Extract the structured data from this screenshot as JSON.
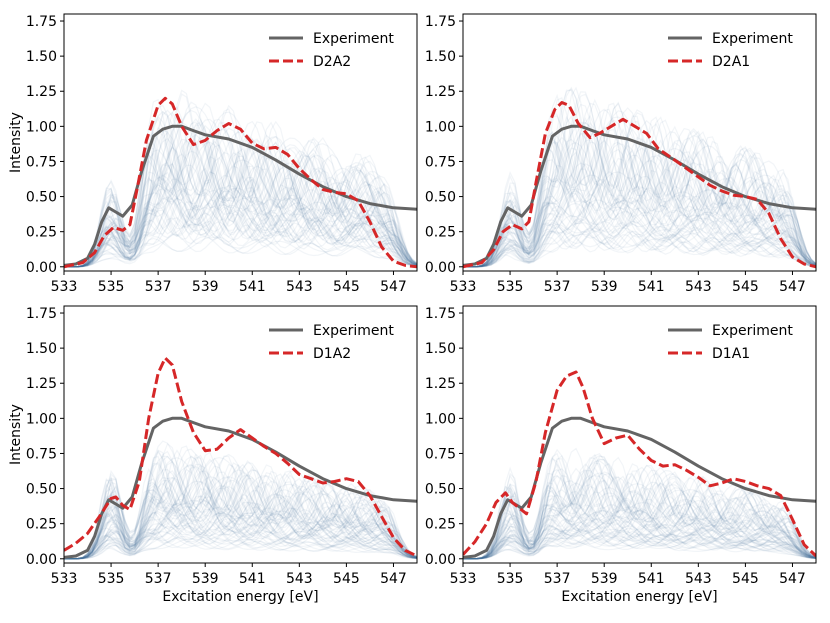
{
  "colors": {
    "experiment": "#646464",
    "calc": "#d62728",
    "band": "#4a6f9c",
    "axis": "#000000"
  },
  "shared": {
    "xlabel": "Excitation energy [eV]",
    "ylabel": "Intensity",
    "xticks": [
      "533",
      "535",
      "537",
      "539",
      "541",
      "543",
      "545",
      "547"
    ],
    "yticks": [
      "0.00",
      "0.25",
      "0.50",
      "0.75",
      "1.00",
      "1.25",
      "1.50",
      "1.75"
    ]
  },
  "chart_data": [
    {
      "type": "line",
      "legend": [
        "Experiment",
        "D2A2"
      ],
      "xlim": [
        533,
        548
      ],
      "ylim": [
        -0.03,
        1.8
      ],
      "xlabel": "",
      "ylabel": "Intensity",
      "series": [
        {
          "name": "Experiment",
          "style": "solid",
          "x": [
            533,
            533.5,
            534,
            534.3,
            534.6,
            534.9,
            535.2,
            535.5,
            535.9,
            536.3,
            536.8,
            537.2,
            537.6,
            538,
            538.5,
            539,
            540,
            541,
            542,
            543,
            544,
            545,
            546,
            547,
            548
          ],
          "y": [
            0.01,
            0.02,
            0.06,
            0.16,
            0.32,
            0.42,
            0.39,
            0.36,
            0.44,
            0.68,
            0.93,
            0.98,
            1.0,
            1.0,
            0.97,
            0.94,
            0.91,
            0.85,
            0.76,
            0.66,
            0.57,
            0.5,
            0.45,
            0.42,
            0.41
          ]
        },
        {
          "name": "D2A2",
          "style": "dashed",
          "x": [
            533,
            533.8,
            534.3,
            534.7,
            535.1,
            535.5,
            535.8,
            536.1,
            536.5,
            537,
            537.3,
            537.6,
            538,
            538.5,
            539,
            539.5,
            540,
            540.5,
            541,
            541.5,
            542,
            542.5,
            543,
            543.5,
            544,
            544.5,
            545,
            545.5,
            546,
            546.5,
            547,
            547.5,
            548
          ],
          "y": [
            0.0,
            0.03,
            0.1,
            0.22,
            0.28,
            0.26,
            0.3,
            0.55,
            0.9,
            1.15,
            1.2,
            1.16,
            1.0,
            0.87,
            0.9,
            0.97,
            1.02,
            0.98,
            0.88,
            0.84,
            0.85,
            0.8,
            0.7,
            0.62,
            0.55,
            0.53,
            0.52,
            0.47,
            0.32,
            0.14,
            0.04,
            0.01,
            0.0
          ]
        }
      ]
    },
    {
      "type": "line",
      "legend": [
        "Experiment",
        "D2A1"
      ],
      "xlim": [
        533,
        548
      ],
      "ylim": [
        -0.03,
        1.8
      ],
      "xlabel": "",
      "ylabel": "",
      "series": [
        {
          "name": "Experiment",
          "style": "solid",
          "x": [
            533,
            533.5,
            534,
            534.3,
            534.6,
            534.9,
            535.2,
            535.5,
            535.9,
            536.3,
            536.8,
            537.2,
            537.6,
            538,
            538.5,
            539,
            540,
            541,
            542,
            543,
            544,
            545,
            546,
            547,
            548
          ],
          "y": [
            0.01,
            0.02,
            0.06,
            0.16,
            0.32,
            0.42,
            0.39,
            0.36,
            0.44,
            0.68,
            0.93,
            0.98,
            1.0,
            1.0,
            0.97,
            0.94,
            0.91,
            0.85,
            0.76,
            0.66,
            0.57,
            0.5,
            0.45,
            0.42,
            0.41
          ]
        },
        {
          "name": "D2A1",
          "style": "dashed",
          "x": [
            533,
            533.8,
            534.3,
            534.7,
            535.1,
            535.5,
            535.8,
            536.1,
            536.5,
            536.9,
            537.2,
            537.5,
            537.9,
            538.4,
            538.8,
            539.3,
            539.8,
            540.3,
            540.8,
            541.3,
            542,
            542.5,
            543,
            543.5,
            544,
            544.5,
            545,
            545.5,
            546,
            546.5,
            547,
            547.5,
            548
          ],
          "y": [
            0.0,
            0.03,
            0.12,
            0.25,
            0.3,
            0.27,
            0.32,
            0.6,
            0.95,
            1.12,
            1.17,
            1.15,
            1.02,
            0.92,
            0.95,
            1.0,
            1.05,
            1.0,
            0.95,
            0.84,
            0.76,
            0.7,
            0.64,
            0.58,
            0.54,
            0.51,
            0.5,
            0.48,
            0.38,
            0.2,
            0.07,
            0.02,
            0.0
          ]
        }
      ]
    },
    {
      "type": "line",
      "legend": [
        "Experiment",
        "D1A2"
      ],
      "xlim": [
        533,
        548
      ],
      "ylim": [
        -0.03,
        1.8
      ],
      "xlabel": "Excitation energy [eV]",
      "ylabel": "Intensity",
      "series": [
        {
          "name": "Experiment",
          "style": "solid",
          "x": [
            533,
            533.5,
            534,
            534.3,
            534.6,
            534.9,
            535.2,
            535.5,
            535.9,
            536.3,
            536.8,
            537.2,
            537.6,
            538,
            538.5,
            539,
            540,
            541,
            542,
            543,
            544,
            545,
            546,
            547,
            548
          ],
          "y": [
            0.01,
            0.02,
            0.06,
            0.16,
            0.32,
            0.42,
            0.39,
            0.36,
            0.44,
            0.68,
            0.93,
            0.98,
            1.0,
            1.0,
            0.97,
            0.94,
            0.91,
            0.85,
            0.76,
            0.66,
            0.57,
            0.5,
            0.45,
            0.42,
            0.41
          ]
        },
        {
          "name": "D1A2",
          "style": "dashed",
          "x": [
            533,
            533.5,
            534,
            534.5,
            535,
            535.2,
            535.5,
            535.8,
            536.2,
            536.6,
            537,
            537.3,
            537.6,
            538,
            538.5,
            539,
            539.5,
            540,
            540.5,
            541,
            541.5,
            542,
            542.5,
            543,
            543.5,
            544,
            544.5,
            545,
            545.5,
            546,
            546.5,
            547,
            547.5,
            548
          ],
          "y": [
            0.06,
            0.11,
            0.18,
            0.3,
            0.43,
            0.44,
            0.38,
            0.35,
            0.55,
            1.0,
            1.32,
            1.43,
            1.38,
            1.12,
            0.9,
            0.77,
            0.78,
            0.86,
            0.92,
            0.86,
            0.8,
            0.75,
            0.68,
            0.6,
            0.57,
            0.54,
            0.55,
            0.57,
            0.55,
            0.45,
            0.3,
            0.15,
            0.06,
            0.02
          ]
        }
      ]
    },
    {
      "type": "line",
      "legend": [
        "Experiment",
        "D1A1"
      ],
      "xlim": [
        533,
        548
      ],
      "ylim": [
        -0.03,
        1.8
      ],
      "xlabel": "Excitation energy [eV]",
      "ylabel": "",
      "series": [
        {
          "name": "Experiment",
          "style": "solid",
          "x": [
            533,
            533.5,
            534,
            534.3,
            534.6,
            534.9,
            535.2,
            535.5,
            535.9,
            536.3,
            536.8,
            537.2,
            537.6,
            538,
            538.5,
            539,
            540,
            541,
            542,
            543,
            544,
            545,
            546,
            547,
            548
          ],
          "y": [
            0.01,
            0.02,
            0.06,
            0.16,
            0.32,
            0.42,
            0.39,
            0.36,
            0.44,
            0.68,
            0.93,
            0.98,
            1.0,
            1.0,
            0.97,
            0.94,
            0.91,
            0.85,
            0.76,
            0.66,
            0.57,
            0.5,
            0.45,
            0.42,
            0.41
          ]
        },
        {
          "name": "D1A1",
          "style": "dashed",
          "x": [
            533,
            533.5,
            534,
            534.4,
            534.8,
            535.1,
            535.4,
            535.7,
            536.1,
            536.5,
            537,
            537.4,
            537.8,
            538.1,
            538.5,
            539,
            539.5,
            540,
            540.5,
            541,
            541.5,
            542,
            542.5,
            543,
            543.5,
            544,
            544.5,
            545,
            545.5,
            546,
            546.5,
            547,
            547.5,
            548
          ],
          "y": [
            0.03,
            0.12,
            0.25,
            0.4,
            0.47,
            0.4,
            0.36,
            0.32,
            0.55,
            0.9,
            1.2,
            1.3,
            1.33,
            1.22,
            1.0,
            0.82,
            0.86,
            0.88,
            0.78,
            0.7,
            0.66,
            0.67,
            0.63,
            0.58,
            0.52,
            0.54,
            0.57,
            0.55,
            0.52,
            0.5,
            0.45,
            0.28,
            0.1,
            0.02
          ]
        }
      ]
    }
  ]
}
